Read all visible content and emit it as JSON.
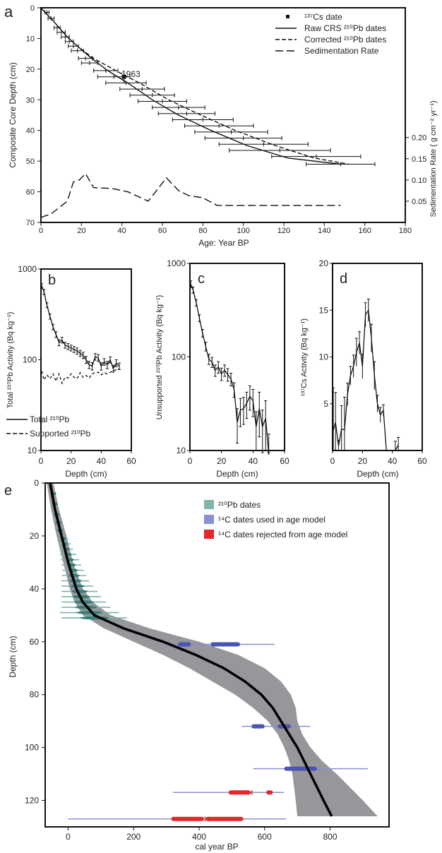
{
  "chart_data": [
    {
      "panel": "a",
      "type": "line",
      "xlabel": "Age: Year BP",
      "ylabel": "Composite Core Depth (cm)",
      "y2label": "Sedimentation Rate ( g cm⁻² yr⁻¹)",
      "xlim": [
        0,
        180
      ],
      "ylim": [
        70,
        0
      ],
      "y2lim": [
        0,
        0.25
      ],
      "x_ticks": [
        "0",
        "20",
        "40",
        "60",
        "80",
        "100",
        "120",
        "140",
        "160",
        "180"
      ],
      "y_ticks": [
        "0",
        "10",
        "20",
        "30",
        "40",
        "50",
        "60",
        "70"
      ],
      "y2_ticks": [
        "0.05",
        "0.10",
        "0.15",
        "0.20"
      ],
      "legend_position": "top-right",
      "legend": [
        {
          "label": "¹³⁷Cs date",
          "style": "square"
        },
        {
          "label": "Raw CRS ²¹⁰Pb dates",
          "style": "solid"
        },
        {
          "label": "Corrected ²¹⁰Pb dates",
          "style": "dash"
        },
        {
          "label": "Sedimentation Rate",
          "style": "longdash"
        }
      ],
      "annotations": [
        "1963"
      ],
      "cs_date": {
        "x": 41,
        "y": 22.5,
        "xerr": 1
      },
      "raw_crs": {
        "depth": [
          0,
          1.5,
          3.5,
          6.5,
          9.5,
          12.5,
          16.5,
          20.5,
          25,
          30,
          35,
          40,
          45,
          49,
          51
        ],
        "age": [
          0,
          2,
          5,
          9,
          13,
          18,
          25,
          33,
          44,
          55,
          68,
          84,
          102,
          122,
          148
        ]
      },
      "corrected": {
        "depth": [
          0,
          1.5,
          3.5,
          6.5,
          9.5,
          12.5,
          16.5,
          20.5,
          25,
          30,
          35,
          40,
          45,
          49,
          51
        ],
        "age": [
          0,
          2,
          5,
          9,
          13,
          18,
          26,
          37,
          50,
          63,
          79,
          96,
          116,
          135,
          152
        ]
      },
      "error_points": {
        "depth": [
          1.5,
          3.5,
          6.5,
          8,
          9.5,
          11,
          12.5,
          14,
          16.5,
          18,
          20.5,
          22.5,
          24.5,
          26.5,
          28.5,
          30.5,
          32.5,
          34.5,
          36.5,
          38.5,
          40.5,
          42.5,
          44.5,
          46.5,
          48.5,
          51
        ],
        "age": [
          3,
          5,
          8,
          10,
          12,
          14,
          16,
          18,
          22,
          24,
          32,
          36,
          42,
          50,
          55,
          60,
          68,
          72,
          80,
          88,
          94,
          100,
          110,
          118,
          136,
          148
        ],
        "err_lo": [
          1,
          1.5,
          1.5,
          2,
          2,
          2,
          2.5,
          3,
          3.5,
          4,
          6,
          8,
          10,
          11,
          11,
          12,
          13,
          14,
          15,
          17,
          18,
          19,
          22,
          25,
          22,
          17
        ],
        "err_hi": [
          1,
          1.5,
          1.5,
          2,
          2,
          2,
          2.5,
          3,
          3.5,
          4,
          6,
          8,
          10,
          11,
          11,
          12,
          13,
          14,
          15,
          17,
          18,
          19,
          22,
          25,
          22,
          17
        ]
      },
      "sed_rate": {
        "age": [
          0,
          5,
          13,
          16,
          19,
          22,
          26,
          35,
          43,
          53,
          62,
          68,
          73,
          80,
          87,
          100,
          120,
          140,
          148
        ],
        "rate": [
          0.012,
          0.02,
          0.05,
          0.095,
          0.1,
          0.115,
          0.082,
          0.08,
          0.072,
          0.05,
          0.105,
          0.075,
          0.063,
          0.058,
          0.04,
          0.04,
          0.04,
          0.04,
          0.04
        ]
      }
    },
    {
      "panel": "b",
      "type": "line",
      "xlabel": "Depth (cm)",
      "ylabel": "Total ²¹⁰Pb Activity (Bq kg⁻¹)",
      "xlim": [
        0,
        60
      ],
      "ylim": [
        10,
        1000
      ],
      "yscale": "log",
      "x_ticks": [
        "0",
        "20",
        "40",
        "60"
      ],
      "y_ticks": [
        "10",
        "100",
        "1000"
      ],
      "legend_position": "bottom-left",
      "series": [
        {
          "name": "Total ²¹⁰Pb",
          "style": "solid",
          "x": [
            0.5,
            2,
            4,
            6,
            8,
            10,
            12,
            14,
            16,
            18,
            20,
            22,
            24,
            26,
            28,
            30,
            32,
            34,
            36,
            38,
            40,
            42,
            44,
            46,
            48,
            50,
            52
          ],
          "y": [
            650,
            560,
            400,
            300,
            230,
            190,
            155,
            165,
            145,
            140,
            135,
            130,
            125,
            118,
            112,
            100,
            88,
            85,
            108,
            105,
            85,
            95,
            88,
            100,
            80,
            92,
            85
          ],
          "err": [
            40,
            35,
            25,
            20,
            16,
            14,
            12,
            12,
            11,
            11,
            10,
            10,
            10,
            9,
            9,
            9,
            8,
            8,
            9,
            9,
            8,
            8,
            8,
            8,
            7,
            8,
            7
          ]
        },
        {
          "name": "Supported ²¹⁰Pb",
          "style": "dash",
          "x": [
            0.5,
            2,
            4,
            6,
            8,
            10,
            12,
            14,
            16,
            18,
            20,
            22,
            24,
            26,
            28,
            30,
            32,
            34,
            36,
            38,
            40,
            42,
            44,
            46,
            48,
            50,
            52
          ],
          "y": [
            75,
            60,
            68,
            62,
            70,
            58,
            70,
            55,
            64,
            63,
            70,
            64,
            62,
            72,
            64,
            67,
            63,
            70,
            72,
            73,
            68,
            72,
            70,
            73,
            75,
            78,
            80
          ]
        }
      ]
    },
    {
      "panel": "c",
      "type": "line",
      "xlabel": "Depth (cm)",
      "ylabel": "Unsupported ²¹⁰Pb Activity (Bq kg⁻¹)",
      "xlim": [
        0,
        60
      ],
      "ylim": [
        10,
        1000
      ],
      "yscale": "log",
      "x_ticks": [
        "0",
        "20",
        "40",
        "60"
      ],
      "y_ticks": [
        "10",
        "100",
        "1000"
      ],
      "series": [
        {
          "x": [
            0.5,
            2,
            4,
            6,
            8,
            10,
            12,
            14,
            16,
            18,
            20,
            22,
            24,
            26,
            28,
            30,
            32,
            34,
            36,
            38,
            40,
            42,
            44,
            46,
            48,
            50
          ],
          "y": [
            600,
            520,
            380,
            260,
            180,
            130,
            95,
            88,
            72,
            78,
            66,
            72,
            65,
            58,
            45,
            20,
            27,
            28,
            32,
            38,
            34,
            18,
            28,
            18,
            22,
            9
          ],
          "err": [
            50,
            40,
            30,
            22,
            17,
            14,
            12,
            11,
            10,
            11,
            10,
            10,
            10,
            9,
            8,
            8,
            9,
            9,
            10,
            11,
            11,
            8,
            14,
            9,
            12,
            6
          ]
        }
      ]
    },
    {
      "panel": "d",
      "type": "line",
      "xlabel": "Depth (cm)",
      "ylabel": "¹³⁷Cs Activity (Bq kg⁻¹)",
      "xlim": [
        0,
        60
      ],
      "ylim": [
        0,
        20
      ],
      "x_ticks": [
        "0",
        "20",
        "40",
        "60"
      ],
      "y_ticks": [
        "5",
        "10",
        "15",
        "20"
      ],
      "series": [
        {
          "x": [
            0.5,
            2,
            4,
            6,
            8,
            10,
            12,
            14,
            16,
            18,
            20,
            22,
            24,
            26,
            28,
            30,
            32,
            34,
            36,
            38,
            40,
            42,
            44
          ],
          "y": [
            2.2,
            3,
            0.5,
            2.3,
            2.2,
            6,
            8,
            9,
            10.5,
            11.5,
            9,
            14.5,
            15,
            12,
            8,
            5,
            3.8,
            4.3,
            0,
            0,
            0,
            0,
            0.6
          ],
          "err": [
            4.5,
            3.2,
            0.6,
            2.5,
            3.5,
            1.2,
            1,
            1.2,
            1.5,
            1.2,
            1.3,
            1.3,
            1.2,
            1.5,
            1.5,
            0.9,
            0.8,
            0.6,
            0,
            0,
            0,
            1,
            0.8
          ]
        }
      ]
    },
    {
      "panel": "e",
      "type": "line",
      "xlabel": "cal year BP",
      "ylabel": "Depth (cm)",
      "xlim": [
        -70,
        980
      ],
      "ylim": [
        130,
        0
      ],
      "x_ticks": [
        "0",
        "200",
        "400",
        "600",
        "800"
      ],
      "y_ticks": [
        "0",
        "20",
        "40",
        "60",
        "80",
        "100",
        "120"
      ],
      "legend_position": "top-right",
      "legend": [
        {
          "label": "²¹⁰Pb dates",
          "color": "#7fb3ab"
        },
        {
          "label": "¹⁴C dates used in age model",
          "color": "#8a8fd0"
        },
        {
          "label": "¹⁴C dates rejected from age model",
          "color": "#e3272a"
        }
      ],
      "age_model_median": {
        "depth": [
          0,
          10,
          20,
          30,
          40,
          45,
          50,
          55,
          60,
          65,
          70,
          75,
          80,
          85,
          90,
          95,
          100,
          105,
          110,
          115,
          120,
          126
        ],
        "age": [
          -55,
          -40,
          -20,
          0,
          25,
          45,
          80,
          170,
          290,
          390,
          475,
          540,
          590,
          625,
          650,
          675,
          700,
          720,
          740,
          760,
          780,
          805
        ]
      },
      "age_model_envelope": {
        "depth": [
          0,
          10,
          20,
          30,
          40,
          45,
          50,
          55,
          60,
          65,
          70,
          75,
          80,
          85,
          90,
          95,
          100,
          105,
          110,
          115,
          120,
          126
        ],
        "lower": [
          -65,
          -52,
          -35,
          -15,
          5,
          20,
          45,
          110,
          200,
          290,
          370,
          440,
          510,
          565,
          610,
          640,
          660,
          675,
          685,
          690,
          695,
          700
        ],
        "upper": [
          -45,
          -28,
          -5,
          15,
          45,
          75,
          130,
          250,
          400,
          520,
          600,
          650,
          680,
          695,
          700,
          715,
          740,
          775,
          820,
          860,
          900,
          945
        ]
      },
      "pb210_dates": {
        "depth": [
          4,
          8,
          12,
          15,
          18,
          21,
          23,
          25,
          27,
          29,
          31,
          33,
          35,
          37,
          39,
          41,
          43,
          45,
          47,
          49,
          51
        ],
        "age": [
          -45,
          -40,
          -35,
          -30,
          -25,
          -15,
          -10,
          -5,
          0,
          5,
          10,
          15,
          18,
          22,
          28,
          35,
          40,
          48,
          55,
          65,
          80
        ],
        "err": [
          5,
          6,
          8,
          9,
          10,
          15,
          18,
          20,
          25,
          28,
          30,
          33,
          38,
          42,
          48,
          55,
          60,
          68,
          75,
          90,
          100
        ]
      },
      "c14_used": [
        {
          "depth": 61,
          "ranges": [
            [
              270,
              630
            ]
          ],
          "peaks": [
            [
              335,
              375
            ],
            [
              435,
              525
            ]
          ]
        },
        {
          "depth": 92,
          "ranges": [
            [
              530,
              740
            ]
          ],
          "peaks": [
            [
              560,
              600
            ],
            [
              640,
              680
            ]
          ]
        },
        {
          "depth": 108,
          "ranges": [
            [
              565,
              915
            ]
          ],
          "peaks": [
            [
              660,
              760
            ]
          ]
        }
      ],
      "c14_rejected": [
        {
          "depth": 117,
          "ranges": [
            [
              320,
              660
            ]
          ],
          "peaks": [
            [
              490,
              555
            ],
            [
              605,
              625
            ]
          ],
          "cross": 557
        },
        {
          "depth": 127,
          "ranges": [
            [
              0,
              665
            ]
          ],
          "peaks": [
            [
              315,
              415
            ],
            [
              420,
              535
            ]
          ],
          "cross": 423
        }
      ]
    }
  ]
}
